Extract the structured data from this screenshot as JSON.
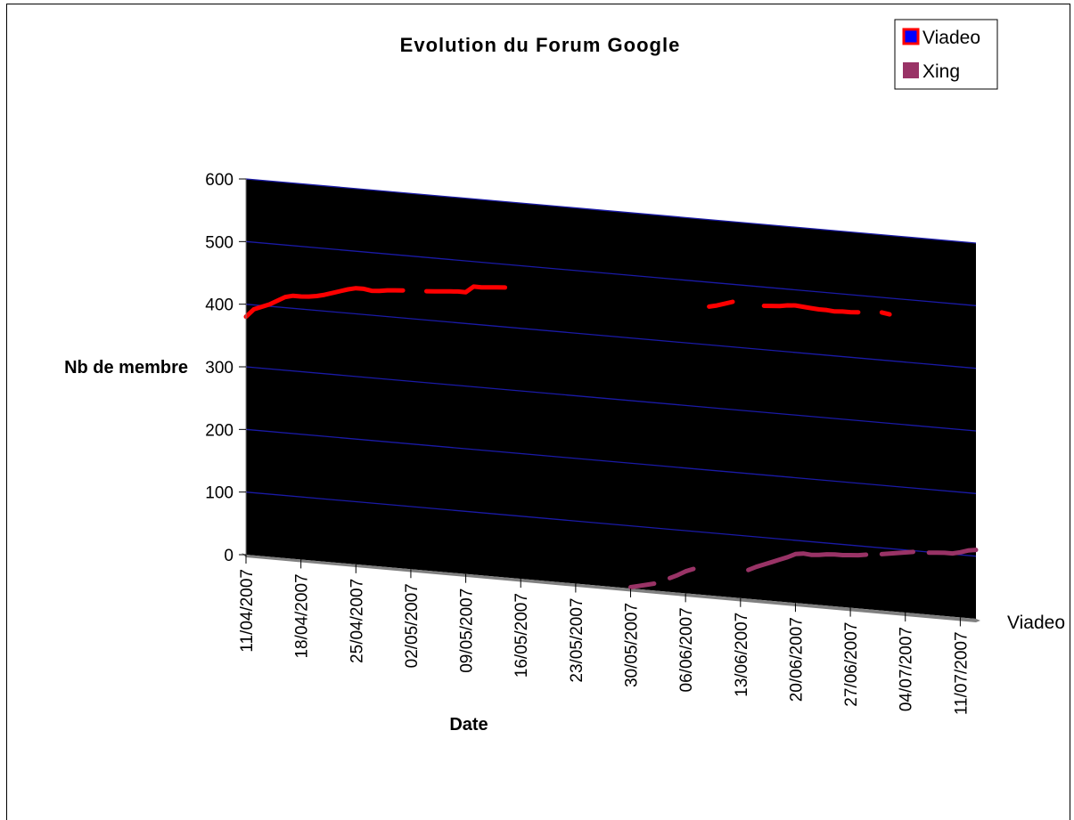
{
  "chart_data": {
    "type": "line",
    "title": "Evolution du Forum Google",
    "xlabel": "Date",
    "ylabel": "Nb de membre",
    "ylim": [
      0,
      600
    ],
    "yticks": [
      0,
      100,
      200,
      300,
      400,
      500,
      600
    ],
    "x_tick_labels": [
      "11/04/2007",
      "18/04/2007",
      "25/04/2007",
      "02/05/2007",
      "09/05/2007",
      "16/05/2007",
      "23/05/2007",
      "30/05/2007",
      "06/06/2007",
      "13/06/2007",
      "20/06/2007",
      "27/06/2007",
      "04/07/2007",
      "11/07/2007"
    ],
    "x_range": [
      "11/04/2007",
      "13/07/2007"
    ],
    "series_axis_label": "Viadeo",
    "grid": true,
    "legend_position": "top-right",
    "series": [
      {
        "name": "Viadeo",
        "color": "#ff0000",
        "segments": [
          [
            [
              "11/04/2007",
              380
            ],
            [
              "12/04/2007",
              393
            ],
            [
              "13/04/2007",
              398
            ],
            [
              "14/04/2007",
              403
            ],
            [
              "15/04/2007",
              410
            ],
            [
              "16/04/2007",
              417
            ],
            [
              "17/04/2007",
              420
            ],
            [
              "18/04/2007",
              420
            ],
            [
              "19/04/2007",
              421
            ],
            [
              "20/04/2007",
              423
            ],
            [
              "21/04/2007",
              426
            ],
            [
              "22/04/2007",
              430
            ],
            [
              "23/04/2007",
              434
            ],
            [
              "24/04/2007",
              438
            ],
            [
              "25/04/2007",
              441
            ],
            [
              "26/04/2007",
              441
            ],
            [
              "27/04/2007",
              439
            ],
            [
              "28/04/2007",
              440
            ],
            [
              "29/04/2007",
              442
            ],
            [
              "30/04/2007",
              443
            ],
            [
              "01/05/2007",
              444
            ]
          ],
          [
            [
              "04/05/2007",
              446
            ],
            [
              "05/05/2007",
              447
            ],
            [
              "06/05/2007",
              448
            ],
            [
              "07/05/2007",
              449
            ],
            [
              "08/05/2007",
              450
            ],
            [
              "09/05/2007",
              450
            ],
            [
              "10/05/2007",
              460
            ],
            [
              "11/05/2007",
              460
            ],
            [
              "12/05/2007",
              461
            ],
            [
              "13/05/2007",
              462
            ],
            [
              "14/05/2007",
              463
            ]
          ],
          [
            [
              "09/06/2007",
              461
            ],
            [
              "10/06/2007",
              464
            ],
            [
              "11/06/2007",
              468
            ],
            [
              "12/06/2007",
              472
            ]
          ],
          [
            [
              "16/06/2007",
              470
            ],
            [
              "17/06/2007",
              471
            ],
            [
              "18/06/2007",
              472
            ],
            [
              "19/06/2007",
              474
            ],
            [
              "20/06/2007",
              475
            ],
            [
              "21/06/2007",
              474
            ],
            [
              "22/06/2007",
              473
            ],
            [
              "23/06/2007",
              472
            ],
            [
              "24/06/2007",
              472
            ],
            [
              "25/06/2007",
              471
            ],
            [
              "26/06/2007",
              472
            ],
            [
              "27/06/2007",
              472
            ],
            [
              "28/06/2007",
              473
            ]
          ],
          [
            [
              "01/07/2007",
              476
            ],
            [
              "02/07/2007",
              474
            ]
          ]
        ]
      },
      {
        "name": "Xing",
        "color": "#993366",
        "segments": [
          [
            [
              "30/05/2007",
              2
            ],
            [
              "31/05/2007",
              5
            ],
            [
              "01/06/2007",
              8
            ],
            [
              "02/06/2007",
              11
            ]
          ],
          [
            [
              "04/06/2007",
              22
            ],
            [
              "05/06/2007",
              28
            ],
            [
              "06/06/2007",
              35
            ],
            [
              "07/06/2007",
              40
            ]
          ],
          [
            [
              "14/06/2007",
              46
            ],
            [
              "15/06/2007",
              52
            ],
            [
              "16/06/2007",
              57
            ],
            [
              "17/06/2007",
              62
            ],
            [
              "18/06/2007",
              67
            ],
            [
              "19/06/2007",
              72
            ],
            [
              "20/06/2007",
              78
            ],
            [
              "21/06/2007",
              80
            ],
            [
              "22/06/2007",
              79
            ],
            [
              "23/06/2007",
              80
            ],
            [
              "24/06/2007",
              82
            ],
            [
              "25/06/2007",
              83
            ],
            [
              "26/06/2007",
              83
            ],
            [
              "27/06/2007",
              84
            ],
            [
              "28/06/2007",
              85
            ],
            [
              "29/06/2007",
              87
            ]
          ],
          [
            [
              "01/07/2007",
              90
            ],
            [
              "02/07/2007",
              92
            ],
            [
              "03/07/2007",
              94
            ],
            [
              "04/07/2007",
              96
            ],
            [
              "05/07/2007",
              98
            ]
          ],
          [
            [
              "07/07/2007",
              99
            ],
            [
              "08/07/2007",
              100
            ],
            [
              "09/07/2007",
              101
            ],
            [
              "10/07/2007",
              101
            ],
            [
              "11/07/2007",
              104
            ],
            [
              "12/07/2007",
              108
            ],
            [
              "13/07/2007",
              110
            ]
          ]
        ]
      }
    ]
  }
}
